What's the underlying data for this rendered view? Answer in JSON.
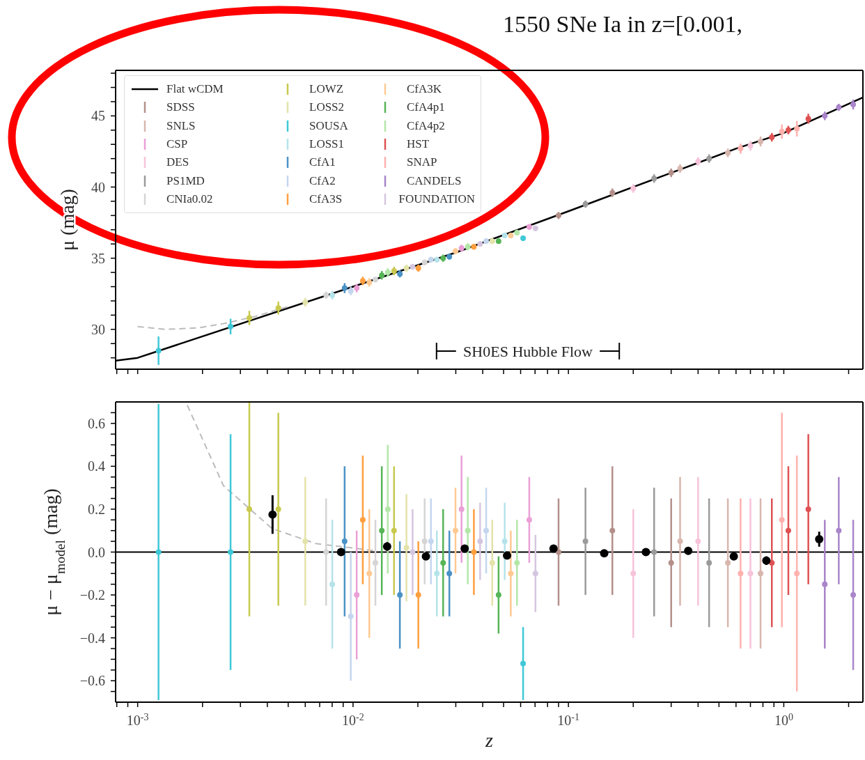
{
  "chart_data": [
    {
      "type": "scatter",
      "title": "1550 SNe Ia in z=[0.001,",
      "ylabel": "μ (mag)",
      "log": "x",
      "legend": "top left",
      "tick_labels": "y",
      "annotations": [
        "SH0ES Hubble Flow"
      ],
      "xlim": [
        0.00079,
        2.33
      ],
      "xticks": [
        {
          "value": 0.0008,
          "label": null
        },
        {
          "value": 0.0009,
          "label": null
        },
        {
          "value": 0.001,
          "label": null
        },
        {
          "value": 0.002,
          "label": null
        },
        {
          "value": 0.003,
          "label": null
        },
        {
          "value": 0.004,
          "label": null
        },
        {
          "value": 0.005,
          "label": null
        },
        {
          "value": 0.006,
          "label": null
        },
        {
          "value": 0.007,
          "label": null
        },
        {
          "value": 0.008,
          "label": null
        },
        {
          "value": 0.009,
          "label": null
        },
        {
          "value": 0.01,
          "label": null
        },
        {
          "value": 0.02,
          "label": null
        },
        {
          "value": 0.03,
          "label": null
        },
        {
          "value": 0.04,
          "label": null
        },
        {
          "value": 0.05,
          "label": null
        },
        {
          "value": 0.06,
          "label": null
        },
        {
          "value": 0.07,
          "label": null
        },
        {
          "value": 0.08,
          "label": null
        },
        {
          "value": 0.09,
          "label": null
        },
        {
          "value": 0.1,
          "label": null
        },
        {
          "value": 0.2,
          "label": null
        },
        {
          "value": 0.3,
          "label": null
        },
        {
          "value": 0.4,
          "label": null
        },
        {
          "value": 0.5,
          "label": null
        },
        {
          "value": 0.6,
          "label": null
        },
        {
          "value": 0.7,
          "label": null
        },
        {
          "value": 0.8,
          "label": null
        },
        {
          "value": 0.9,
          "label": null
        },
        {
          "value": 1,
          "label": null
        },
        {
          "value": 2,
          "label": null
        }
      ],
      "ylim": [
        27.2,
        48.2
      ],
      "yticks": [
        {
          "value": 28,
          "label": null
        },
        {
          "value": 29,
          "label": null
        },
        30,
        {
          "value": 31,
          "label": null
        },
        {
          "value": 32,
          "label": null
        },
        {
          "value": 33,
          "label": null
        },
        {
          "value": 34,
          "label": null
        },
        35,
        {
          "value": 36,
          "label": null
        },
        {
          "value": 37,
          "label": null
        },
        {
          "value": 38,
          "label": null
        },
        {
          "value": 39,
          "label": null
        },
        40,
        {
          "value": 41,
          "label": null
        },
        {
          "value": 42,
          "label": null
        },
        {
          "value": 43,
          "label": null
        },
        {
          "value": 44,
          "label": null
        },
        45,
        {
          "value": 46,
          "label": null
        },
        {
          "value": 47,
          "label": null
        },
        {
          "value": 48,
          "label": null
        }
      ],
      "series": [
        {
          "type": "line",
          "name": "Flat wCDM",
          "color": "#000000",
          "x": [
            0.00079,
            0.001,
            0.01,
            0.03,
            0.1,
            0.3,
            0.6,
            1,
            2.33
          ],
          "values": [
            27.8,
            28.0,
            33.0,
            35.4,
            38.3,
            41.0,
            42.7,
            43.8,
            46.3
          ]
        },
        {
          "type": "line",
          "line_style": "dashed",
          "color": "#bbbbbb",
          "x": [
            0.001,
            0.00134,
            0.0019,
            0.0025,
            0.0035,
            0.005
          ],
          "values": [
            30.2,
            30.0,
            30.1,
            30.4,
            30.9,
            31.6
          ]
        },
        {
          "name": "SDSS",
          "color": "#b4908a",
          "x": [
            0.09,
            0.16,
            0.3
          ],
          "values": [
            38.0,
            39.6,
            41.0
          ],
          "errors": [
            0.25,
            0.3,
            0.3
          ]
        },
        {
          "name": "SNLS",
          "color": "#d8b6ae",
          "x": [
            0.33,
            0.55,
            0.78
          ],
          "values": [
            41.3,
            42.4,
            43.2
          ],
          "errors": [
            0.3,
            0.3,
            0.35
          ]
        },
        {
          "name": "CSP",
          "color": "#ea9fd6",
          "x": [
            0.0104,
            0.0319,
            0.0658
          ],
          "values": [
            32.9,
            35.7,
            37.2
          ],
          "errors": [
            0.3,
            0.25,
            0.2
          ]
        },
        {
          "name": "DES",
          "color": "#f7c3da",
          "x": [
            0.2,
            0.4,
            0.7
          ],
          "values": [
            39.9,
            41.8,
            42.9
          ],
          "errors": [
            0.3,
            0.3,
            0.35
          ]
        },
        {
          "name": "PS1MD",
          "color": "#9a9a9a",
          "x": [
            0.12,
            0.25,
            0.45
          ],
          "values": [
            38.8,
            40.6,
            42.0
          ],
          "errors": [
            0.25,
            0.3,
            0.3
          ]
        },
        {
          "name": "CNIa0.02",
          "color": "#d5d5d5",
          "x": [
            0.0075,
            0.0127,
            0.0215
          ],
          "values": [
            32.4,
            33.5,
            34.7
          ],
          "errors": [
            0.25,
            0.2,
            0.2
          ]
        },
        {
          "name": "LOWZ",
          "color": "#c8c94e",
          "x": [
            0.0033,
            0.0045,
            0.0155
          ],
          "values": [
            30.8,
            31.5,
            34.1
          ],
          "errors": [
            0.5,
            0.45,
            0.3
          ]
        },
        {
          "name": "LOSS2",
          "color": "#e3e3aa",
          "x": [
            0.006,
            0.0177,
            0.0443
          ],
          "values": [
            31.9,
            34.3,
            36.2
          ],
          "errors": [
            0.3,
            0.25,
            0.2
          ]
        },
        {
          "name": "SOUSA",
          "color": "#3fc8d8",
          "x": [
            0.00125,
            0.0027,
            0.0616
          ],
          "values": [
            28.5,
            30.2,
            36.4
          ],
          "errors": [
            1.0,
            0.55,
            0.17
          ]
        },
        {
          "name": "LOSS1",
          "color": "#b5e3ea",
          "x": [
            0.00801,
            0.0245,
            0.0506
          ],
          "values": [
            32.4,
            34.9,
            36.6
          ],
          "errors": [
            0.3,
            0.2,
            0.18
          ]
        },
        {
          "name": "CfA1",
          "color": "#4a92c5",
          "x": [
            0.00914,
            0.0165,
            0.028
          ],
          "values": [
            32.9,
            33.9,
            35.1
          ],
          "errors": [
            0.35,
            0.25,
            0.2
          ]
        },
        {
          "name": "CfA2",
          "color": "#c4d6ee",
          "x": [
            0.00976,
            0.023,
            0.0415
          ],
          "values": [
            32.7,
            34.9,
            36.2
          ],
          "errors": [
            0.3,
            0.2,
            0.2
          ]
        },
        {
          "name": "CfA3S",
          "color": "#ff9f3f",
          "x": [
            0.0111,
            0.0201,
            0.0364
          ],
          "values": [
            33.4,
            34.3,
            35.8
          ],
          "errors": [
            0.3,
            0.25,
            0.2
          ]
        },
        {
          "name": "CfA3K",
          "color": "#ffc993",
          "x": [
            0.0119,
            0.0299,
            0.054
          ],
          "values": [
            33.3,
            35.5,
            36.6
          ],
          "errors": [
            0.3,
            0.2,
            0.2
          ]
        },
        {
          "name": "CfA4p1",
          "color": "#56b556",
          "x": [
            0.0136,
            0.0262,
            0.0474
          ],
          "values": [
            33.8,
            35.0,
            36.2
          ],
          "errors": [
            0.3,
            0.25,
            0.18
          ]
        },
        {
          "name": "CfA4p2",
          "color": "#b3e7a8",
          "x": [
            0.0145,
            0.0341,
            0.0577
          ],
          "values": [
            34.0,
            35.8,
            36.8
          ],
          "errors": [
            0.3,
            0.25,
            0.2
          ]
        },
        {
          "name": "HST",
          "color": "#de5253",
          "x": [
            0.88,
            1.05,
            1.3
          ],
          "values": [
            43.5,
            44.0,
            44.8
          ],
          "errors": [
            0.3,
            0.3,
            0.35
          ]
        },
        {
          "name": "SNAP",
          "color": "#ffb1ad",
          "x": [
            0.63,
            0.98,
            1.15
          ],
          "values": [
            42.7,
            43.9,
            44.1
          ],
          "errors": [
            0.35,
            0.5,
            0.55
          ]
        },
        {
          "name": "CANDELS",
          "color": "#a985ca",
          "x": [
            1.55,
            1.8,
            2.1
          ],
          "values": [
            45.0,
            45.6,
            45.8
          ],
          "errors": [
            0.3,
            0.25,
            0.35
          ]
        },
        {
          "name": "FOUNDATION",
          "color": "#d5c6e0",
          "x": [
            0.0189,
            0.0389,
            0.0703
          ],
          "values": [
            34.4,
            36.0,
            37.1
          ],
          "errors": [
            0.2,
            0.18,
            0.18
          ]
        }
      ]
    },
    {
      "type": "scatter",
      "xlabel": "z",
      "ylabel": "μ − μ$_{model}$ (mag)",
      "log": "x",
      "xlim": [
        0.00079,
        2.33
      ],
      "xticks": [
        {
          "value": 0.0008,
          "label": null
        },
        {
          "value": 0.0009,
          "label": null
        },
        {
          "value": 0.001,
          "label": "10$^{-3}$"
        },
        {
          "value": 0.002,
          "label": null
        },
        {
          "value": 0.003,
          "label": null
        },
        {
          "value": 0.004,
          "label": null
        },
        {
          "value": 0.005,
          "label": null
        },
        {
          "value": 0.006,
          "label": null
        },
        {
          "value": 0.007,
          "label": null
        },
        {
          "value": 0.008,
          "label": null
        },
        {
          "value": 0.009,
          "label": null
        },
        {
          "value": 0.01,
          "label": "10$^{-2}$"
        },
        {
          "value": 0.02,
          "label": null
        },
        {
          "value": 0.03,
          "label": null
        },
        {
          "value": 0.04,
          "label": null
        },
        {
          "value": 0.05,
          "label": null
        },
        {
          "value": 0.06,
          "label": null
        },
        {
          "value": 0.07,
          "label": null
        },
        {
          "value": 0.08,
          "label": null
        },
        {
          "value": 0.09,
          "label": null
        },
        {
          "value": 0.1,
          "label": "10$^{-1}$"
        },
        {
          "value": 0.2,
          "label": null
        },
        {
          "value": 0.3,
          "label": null
        },
        {
          "value": 0.4,
          "label": null
        },
        {
          "value": 0.5,
          "label": null
        },
        {
          "value": 0.6,
          "label": null
        },
        {
          "value": 0.7,
          "label": null
        },
        {
          "value": 0.8,
          "label": null
        },
        {
          "value": 0.9,
          "label": null
        },
        {
          "value": 1,
          "label": "10$^{0}$"
        },
        {
          "value": 2,
          "label": null
        }
      ],
      "ylim": [
        -0.7,
        0.7
      ],
      "yticks": [
        {
          "value": -0.65,
          "label": null
        },
        {
          "value": -0.6,
          "label": "−0.6"
        },
        {
          "value": -0.55,
          "label": null
        },
        {
          "value": -0.5,
          "label": null
        },
        {
          "value": -0.45,
          "label": null
        },
        {
          "value": -0.4,
          "label": "−0.4"
        },
        {
          "value": -0.35,
          "label": null
        },
        {
          "value": -0.3,
          "label": null
        },
        {
          "value": -0.25,
          "label": null
        },
        {
          "value": -0.2,
          "label": "−0.2"
        },
        {
          "value": -0.15,
          "label": null
        },
        {
          "value": -0.1,
          "label": null
        },
        {
          "value": -0.05,
          "label": null
        },
        {
          "value": 0,
          "label": "0.0"
        },
        {
          "value": 0.05,
          "label": null
        },
        {
          "value": 0.1,
          "label": null
        },
        {
          "value": 0.15,
          "label": null
        },
        {
          "value": 0.2,
          "label": "0.2"
        },
        {
          "value": 0.25,
          "label": null
        },
        {
          "value": 0.3,
          "label": null
        },
        {
          "value": 0.35,
          "label": null
        },
        {
          "value": 0.4,
          "label": "0.4"
        },
        {
          "value": 0.45,
          "label": null
        },
        {
          "value": 0.5,
          "label": null
        },
        {
          "value": 0.55,
          "label": null
        },
        {
          "value": 0.6,
          "label": "0.6"
        },
        {
          "value": 0.65,
          "label": null
        }
      ],
      "ref_lines": [
        {
          "axis": "y",
          "value": 0,
          "color": "#000000"
        }
      ],
      "series": [
        {
          "type": "line",
          "line_style": "dashed",
          "color": "#bbbbbb",
          "x": [
            0.0017,
            0.0025,
            0.0042,
            0.0067,
            0.0127
          ],
          "values": [
            0.685,
            0.31,
            0.11,
            0.04,
            0.006
          ]
        },
        {
          "color": "#b4908a",
          "x": [
            0.09,
            0.16,
            0.3
          ],
          "values": [
            0.0,
            0.1,
            -0.05
          ],
          "errors": [
            0.25,
            0.3,
            0.3
          ]
        },
        {
          "color": "#d8b6ae",
          "x": [
            0.33,
            0.55,
            0.78
          ],
          "values": [
            0.05,
            -0.05,
            -0.1
          ],
          "errors": [
            0.3,
            0.3,
            0.35
          ]
        },
        {
          "color": "#ea9fd6",
          "x": [
            0.0104,
            0.0319,
            0.0658
          ],
          "values": [
            -0.2,
            0.2,
            0.15
          ],
          "errors": [
            0.3,
            0.25,
            0.2
          ]
        },
        {
          "color": "#f7c3da",
          "x": [
            0.2,
            0.4,
            0.7
          ],
          "values": [
            -0.1,
            0.05,
            -0.1
          ],
          "errors": [
            0.3,
            0.3,
            0.35
          ]
        },
        {
          "color": "#9a9a9a",
          "x": [
            0.12,
            0.25,
            0.45
          ],
          "values": [
            0.05,
            0.0,
            -0.05
          ],
          "errors": [
            0.25,
            0.3,
            0.3
          ]
        },
        {
          "color": "#d5d5d5",
          "x": [
            0.0075,
            0.0127,
            0.0215
          ],
          "values": [
            0.0,
            -0.05,
            0.05
          ],
          "errors": [
            0.25,
            0.2,
            0.2
          ]
        },
        {
          "color": "#c8c94e",
          "x": [
            0.0033,
            0.0045,
            0.0155
          ],
          "values": [
            0.2,
            0.2,
            0.1
          ],
          "errors": [
            0.5,
            0.45,
            0.3
          ]
        },
        {
          "color": "#e3e3aa",
          "x": [
            0.006,
            0.0177,
            0.0443
          ],
          "values": [
            0.05,
            0.02,
            -0.05
          ],
          "errors": [
            0.3,
            0.25,
            0.2
          ]
        },
        {
          "color": "#3fc8d8",
          "x": [
            0.00125,
            0.0027,
            0.0616
          ],
          "values": [
            0.0,
            0.0,
            -0.52
          ],
          "errors": [
            0.69,
            0.55,
            0.17
          ]
        },
        {
          "color": "#b5e3ea",
          "x": [
            0.00801,
            0.0245,
            0.0506
          ],
          "values": [
            -0.15,
            -0.1,
            0.05
          ],
          "errors": [
            0.3,
            0.2,
            0.18
          ]
        },
        {
          "color": "#4a92c5",
          "x": [
            0.00914,
            0.0165,
            0.028
          ],
          "values": [
            0.05,
            -0.2,
            -0.1
          ],
          "errors": [
            0.35,
            0.25,
            0.2
          ]
        },
        {
          "color": "#c4d6ee",
          "x": [
            0.00976,
            0.023,
            0.0415
          ],
          "values": [
            -0.3,
            0.05,
            0.1
          ],
          "errors": [
            0.3,
            0.2,
            0.2
          ]
        },
        {
          "color": "#ff9f3f",
          "x": [
            0.0111,
            0.0201,
            0.0364
          ],
          "values": [
            0.15,
            -0.2,
            0.0
          ],
          "errors": [
            0.3,
            0.25,
            0.2
          ]
        },
        {
          "color": "#ffc993",
          "x": [
            0.0119,
            0.0299,
            0.054
          ],
          "values": [
            -0.1,
            0.1,
            -0.1
          ],
          "errors": [
            0.3,
            0.2,
            0.2
          ]
        },
        {
          "color": "#56b556",
          "x": [
            0.0136,
            0.0262,
            0.0474
          ],
          "values": [
            0.1,
            -0.05,
            -0.2
          ],
          "errors": [
            0.3,
            0.25,
            0.18
          ]
        },
        {
          "color": "#b3e7a8",
          "x": [
            0.0145,
            0.0341,
            0.0577
          ],
          "values": [
            0.2,
            0.1,
            -0.05
          ],
          "errors": [
            0.3,
            0.25,
            0.2
          ]
        },
        {
          "color": "#de5253",
          "x": [
            0.88,
            1.05,
            1.3
          ],
          "values": [
            -0.05,
            0.1,
            0.2
          ],
          "errors": [
            0.3,
            0.3,
            0.35
          ]
        },
        {
          "color": "#ffb1ad",
          "x": [
            0.63,
            0.98,
            1.15
          ],
          "values": [
            -0.1,
            0.15,
            -0.1
          ],
          "errors": [
            0.35,
            0.5,
            0.55
          ]
        },
        {
          "color": "#a985ca",
          "x": [
            1.55,
            1.8,
            2.1
          ],
          "values": [
            -0.15,
            0.1,
            -0.2
          ],
          "errors": [
            0.3,
            0.25,
            0.35
          ]
        },
        {
          "color": "#d5c6e0",
          "x": [
            0.0189,
            0.0389,
            0.0703
          ],
          "values": [
            0.0,
            0.05,
            -0.1
          ],
          "errors": [
            0.2,
            0.18,
            0.18
          ]
        },
        {
          "marker": "circle",
          "color": "#000000",
          "x": [
            0.00423,
            0.0088,
            0.0144,
            0.0218,
            0.033,
            0.0519,
            0.0853,
            0.1466,
            0.229,
            0.36,
            0.586,
            0.83,
            1.46
          ],
          "values": [
            0.175,
            0.0,
            0.026,
            -0.02,
            0.016,
            -0.016,
            0.016,
            -0.006,
            0.0,
            0.006,
            -0.02,
            -0.04,
            0.06
          ],
          "errors": [
            0.09,
            0.015,
            0.02,
            0.01,
            0.01,
            0.01,
            0.01,
            0.01,
            0.01,
            0.01,
            0.01,
            0.02,
            0.035
          ]
        }
      ]
    }
  ]
}
